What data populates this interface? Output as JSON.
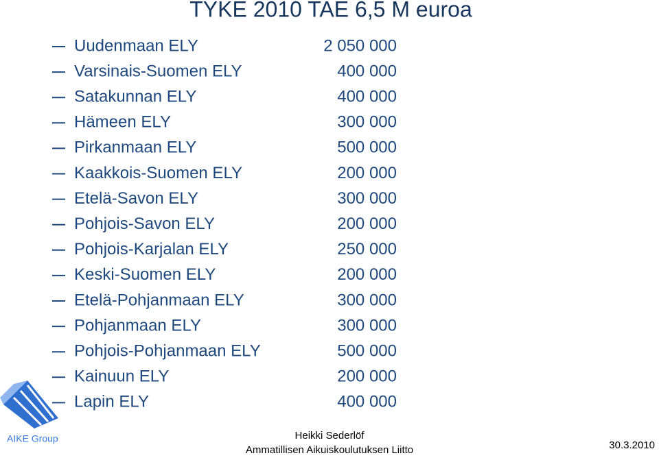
{
  "header": {
    "title": "TYKE 2010 TAE 6,5 M euroa"
  },
  "list": {
    "rows": [
      [
        "Uudenmaan ELY",
        "2 050 000"
      ],
      [
        "Varsinais-Suomen ELY",
        "400 000"
      ],
      [
        "Satakunnan ELY",
        "400 000"
      ],
      [
        "Hämeen ELY",
        "300 000"
      ],
      [
        "Pirkanmaan ELY",
        "500 000"
      ],
      [
        "Kaakkois-Suomen ELY",
        "200 000"
      ],
      [
        "Etelä-Savon ELY",
        "300 000"
      ],
      [
        "Pohjois-Savon ELY",
        "200 000"
      ],
      [
        "Pohjois-Karjalan ELY",
        "250 000"
      ],
      [
        "Keski-Suomen ELY",
        "200 000"
      ],
      [
        "Etelä-Pohjanmaan ELY",
        "300 000"
      ],
      [
        "Pohjanmaan ELY",
        "300 000"
      ],
      [
        "Pohjois-Pohjanmaan ELY",
        "500 000"
      ],
      [
        "Kainuun ELY",
        "200 000"
      ],
      [
        "Lapin ELY",
        "400 000"
      ]
    ]
  },
  "footer": {
    "logo_text": "AIKE Group",
    "author": "Heikki Sederlöf",
    "organization": "Ammatillisen Aikuiskoulutuksen Liitto",
    "date": "30.3.2010"
  }
}
